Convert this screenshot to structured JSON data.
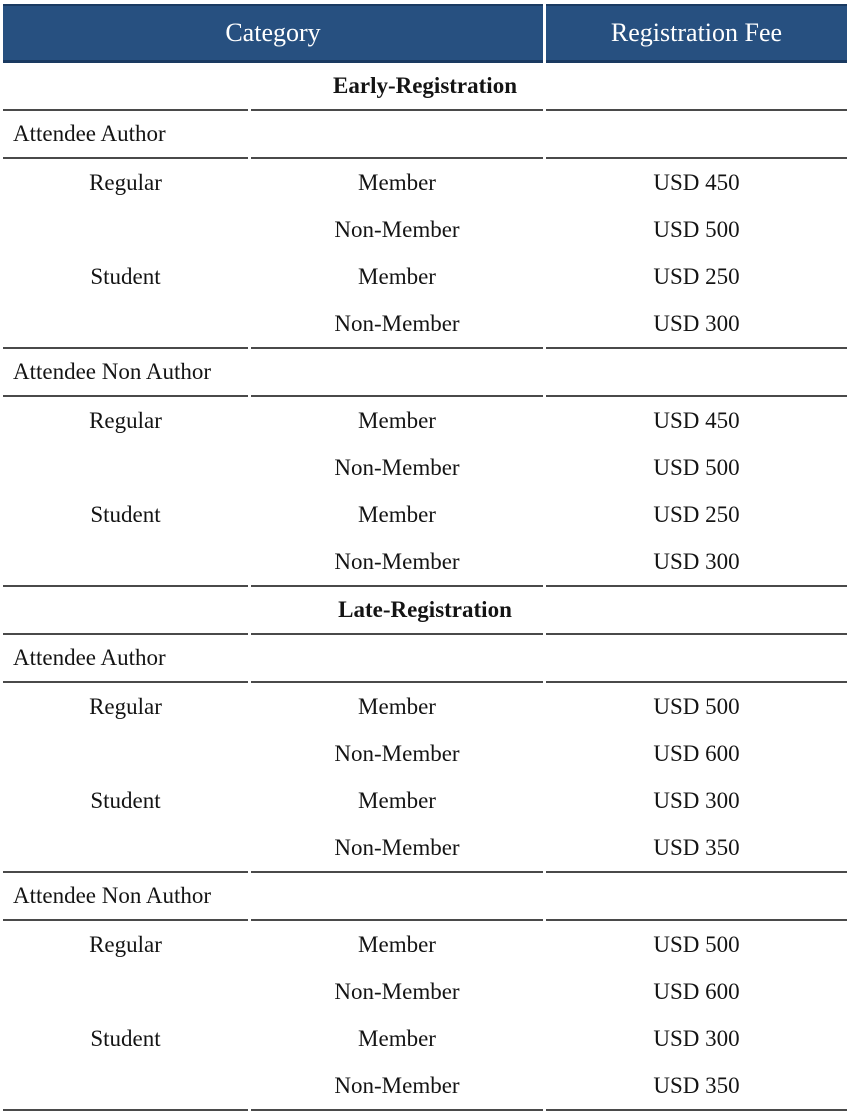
{
  "table": {
    "header": {
      "category": "Category",
      "registration_fee": "Registration Fee"
    },
    "sections": [
      {
        "title": "Early-Registration",
        "groups": [
          {
            "name": "Attendee Author",
            "rows": [
              {
                "type": "Regular",
                "membership": "Member",
                "fee": "USD 450"
              },
              {
                "type": "",
                "membership": "Non-Member",
                "fee": "USD 500"
              },
              {
                "type": "Student",
                "membership": "Member",
                "fee": "USD 250"
              },
              {
                "type": "",
                "membership": "Non-Member",
                "fee": "USD 300"
              }
            ]
          },
          {
            "name": "Attendee Non Author",
            "rows": [
              {
                "type": "Regular",
                "membership": "Member",
                "fee": "USD 450"
              },
              {
                "type": "",
                "membership": "Non-Member",
                "fee": "USD 500"
              },
              {
                "type": "Student",
                "membership": "Member",
                "fee": "USD 250"
              },
              {
                "type": "",
                "membership": "Non-Member",
                "fee": "USD 300"
              }
            ]
          }
        ]
      },
      {
        "title": "Late-Registration",
        "groups": [
          {
            "name": "Attendee Author",
            "rows": [
              {
                "type": "Regular",
                "membership": "Member",
                "fee": "USD 500"
              },
              {
                "type": "",
                "membership": "Non-Member",
                "fee": "USD 600"
              },
              {
                "type": "Student",
                "membership": "Member",
                "fee": "USD 300"
              },
              {
                "type": "",
                "membership": "Non-Member",
                "fee": "USD 350"
              }
            ]
          },
          {
            "name": "Attendee Non Author",
            "rows": [
              {
                "type": "Regular",
                "membership": "Member",
                "fee": "USD 500"
              },
              {
                "type": "",
                "membership": "Non-Member",
                "fee": "USD 600"
              },
              {
                "type": "Student",
                "membership": "Member",
                "fee": "USD 300"
              },
              {
                "type": "",
                "membership": "Non-Member",
                "fee": "USD 350"
              }
            ]
          }
        ]
      }
    ]
  },
  "colors": {
    "header_background": "#275080",
    "header_border": "#1a3a61",
    "header_text": "#ffffff",
    "rule_line": "#4a4a4a",
    "body_text": "#141414",
    "page_background": "#ffffff"
  }
}
